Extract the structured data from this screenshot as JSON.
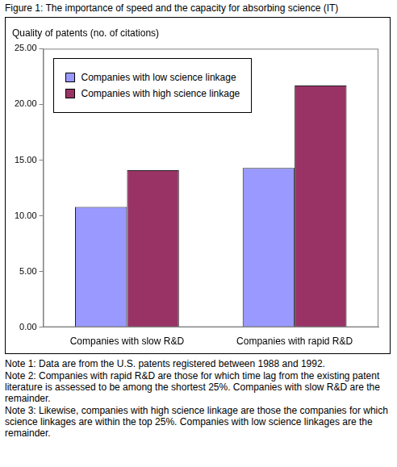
{
  "chart_data": {
    "type": "bar",
    "title": "Figure 1: The importance of speed and the capacity for absorbing science (IT)",
    "ylabel": "Quality of patents (no. of citations)",
    "categories": [
      "Companies with slow R&D",
      "Companies with rapid R&D"
    ],
    "series": [
      {
        "name": "Companies with low science linkage",
        "color": "#9999ff",
        "values": [
          10.8,
          14.3
        ]
      },
      {
        "name": "Companies with high science linkage",
        "color": "#993366",
        "values": [
          14.1,
          21.7
        ]
      }
    ],
    "ylim": [
      0,
      25
    ],
    "yticks": [
      {
        "value": 0,
        "label": "0.00"
      },
      {
        "value": 5,
        "label": "5.00"
      },
      {
        "value": 10,
        "label": "10.00"
      },
      {
        "value": 15,
        "label": "15.00"
      },
      {
        "value": 20,
        "label": "20.00"
      },
      {
        "value": 25,
        "label": "25.00"
      }
    ],
    "grid": false,
    "legend": "upper left",
    "annotations": [
      "Note 1: Data are from the U.S. patents registered between 1988 and 1992.",
      "Note 2: Companies with rapid R&D are those for which time lag from the existing patent literature is assessed to be among the shortest 25%. Companies with slow R&D are the remainder.",
      "Note 3: Likewise, companies with high science linkage are those the companies for which science linkages are within the top 25%. Companies with low science linkages are the remainder."
    ]
  }
}
